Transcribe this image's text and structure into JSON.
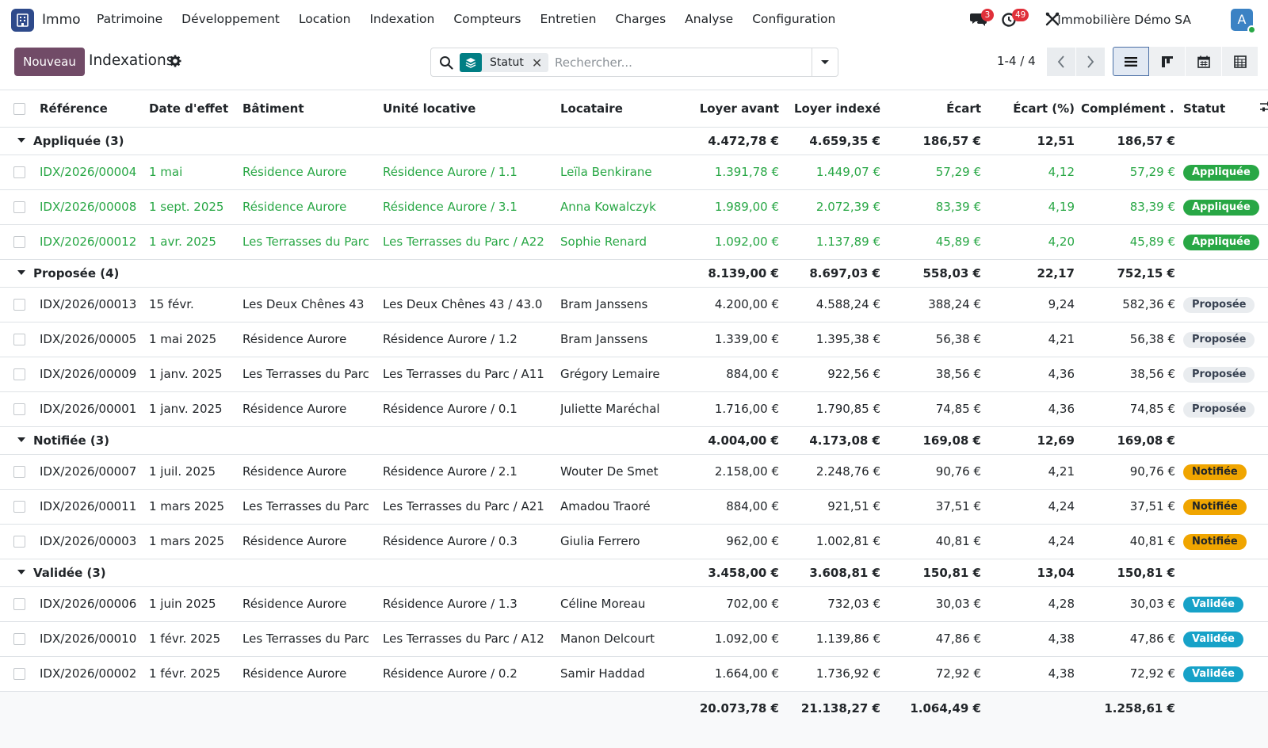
{
  "navbar": {
    "app_name": "Immo",
    "menu": [
      "Patrimoine",
      "Développement",
      "Location",
      "Indexation",
      "Compteurs",
      "Entretien",
      "Charges",
      "Analyse",
      "Configuration"
    ],
    "messages_count": "3",
    "activities_count": "49",
    "company": "Immobilière Démo SA",
    "avatar_letter": "A"
  },
  "control": {
    "new_label": "Nouveau",
    "title": "Indexations",
    "facet_label": "Statut",
    "search_placeholder": "Rechercher...",
    "pager": "1-4 / 4"
  },
  "table": {
    "columns": [
      "Référence",
      "Date d'effet",
      "Bâtiment",
      "Unité locative",
      "Locataire",
      "Loyer avant",
      "Loyer indexé",
      "Écart",
      "Écart (%)",
      "Complément ...",
      "Statut"
    ],
    "groups": [
      {
        "label": "Appliquée (3)",
        "totals": [
          "4.472,78 €",
          "4.659,35 €",
          "186,57 €",
          "12,51",
          "186,57 €"
        ],
        "badge_class": "b-appl",
        "green": true,
        "rows": [
          [
            "IDX/2026/00004",
            "1 mai",
            "Résidence Aurore",
            "Résidence Aurore / 1.1",
            "Leïla Benkirane",
            "1.391,78 €",
            "1.449,07 €",
            "57,29 €",
            "4,12",
            "57,29 €",
            "Appliquée"
          ],
          [
            "IDX/2026/00008",
            "1 sept. 2025",
            "Résidence Aurore",
            "Résidence Aurore / 3.1",
            "Anna Kowalczyk",
            "1.989,00 €",
            "2.072,39 €",
            "83,39 €",
            "4,19",
            "83,39 €",
            "Appliquée"
          ],
          [
            "IDX/2026/00012",
            "1 avr. 2025",
            "Les Terrasses du Parc",
            "Les Terrasses du Parc / A22",
            "Sophie Renard",
            "1.092,00 €",
            "1.137,89 €",
            "45,89 €",
            "4,20",
            "45,89 €",
            "Appliquée"
          ]
        ]
      },
      {
        "label": "Proposée (4)",
        "totals": [
          "8.139,00 €",
          "8.697,03 €",
          "558,03 €",
          "22,17",
          "752,15 €"
        ],
        "badge_class": "b-prop",
        "green": false,
        "rows": [
          [
            "IDX/2026/00013",
            "15 févr.",
            "Les Deux Chênes 43",
            "Les Deux Chênes 43 / 43.0",
            "Bram Janssens",
            "4.200,00 €",
            "4.588,24 €",
            "388,24 €",
            "9,24",
            "582,36 €",
            "Proposée"
          ],
          [
            "IDX/2026/00005",
            "1 mai 2025",
            "Résidence Aurore",
            "Résidence Aurore / 1.2",
            "Bram Janssens",
            "1.339,00 €",
            "1.395,38 €",
            "56,38 €",
            "4,21",
            "56,38 €",
            "Proposée"
          ],
          [
            "IDX/2026/00009",
            "1 janv. 2025",
            "Les Terrasses du Parc",
            "Les Terrasses du Parc / A11",
            "Grégory Lemaire",
            "884,00 €",
            "922,56 €",
            "38,56 €",
            "4,36",
            "38,56 €",
            "Proposée"
          ],
          [
            "IDX/2026/00001",
            "1 janv. 2025",
            "Résidence Aurore",
            "Résidence Aurore / 0.1",
            "Juliette Maréchal",
            "1.716,00 €",
            "1.790,85 €",
            "74,85 €",
            "4,36",
            "74,85 €",
            "Proposée"
          ]
        ]
      },
      {
        "label": "Notifiée (3)",
        "totals": [
          "4.004,00 €",
          "4.173,08 €",
          "169,08 €",
          "12,69",
          "169,08 €"
        ],
        "badge_class": "b-noti",
        "green": false,
        "rows": [
          [
            "IDX/2026/00007",
            "1 juil. 2025",
            "Résidence Aurore",
            "Résidence Aurore / 2.1",
            "Wouter De Smet",
            "2.158,00 €",
            "2.248,76 €",
            "90,76 €",
            "4,21",
            "90,76 €",
            "Notifiée"
          ],
          [
            "IDX/2026/00011",
            "1 mars 2025",
            "Les Terrasses du Parc",
            "Les Terrasses du Parc / A21",
            "Amadou Traoré",
            "884,00 €",
            "921,51 €",
            "37,51 €",
            "4,24",
            "37,51 €",
            "Notifiée"
          ],
          [
            "IDX/2026/00003",
            "1 mars 2025",
            "Résidence Aurore",
            "Résidence Aurore / 0.3",
            "Giulia Ferrero",
            "962,00 €",
            "1.002,81 €",
            "40,81 €",
            "4,24",
            "40,81 €",
            "Notifiée"
          ]
        ]
      },
      {
        "label": "Validée (3)",
        "totals": [
          "3.458,00 €",
          "3.608,81 €",
          "150,81 €",
          "13,04",
          "150,81 €"
        ],
        "badge_class": "b-vali",
        "green": false,
        "rows": [
          [
            "IDX/2026/00006",
            "1 juin 2025",
            "Résidence Aurore",
            "Résidence Aurore / 1.3",
            "Céline Moreau",
            "702,00 €",
            "732,03 €",
            "30,03 €",
            "4,28",
            "30,03 €",
            "Validée"
          ],
          [
            "IDX/2026/00010",
            "1 févr. 2025",
            "Les Terrasses du Parc",
            "Les Terrasses du Parc / A12",
            "Manon Delcourt",
            "1.092,00 €",
            "1.139,86 €",
            "47,86 €",
            "4,38",
            "47,86 €",
            "Validée"
          ],
          [
            "IDX/2026/00002",
            "1 févr. 2025",
            "Résidence Aurore",
            "Résidence Aurore / 0.2",
            "Samir Haddad",
            "1.664,00 €",
            "1.736,92 €",
            "72,92 €",
            "4,38",
            "72,92 €",
            "Validée"
          ]
        ]
      }
    ],
    "grand_totals": [
      "20.073,78 €",
      "21.138,27 €",
      "1.064,49 €",
      "",
      "1.258,61 €"
    ]
  }
}
